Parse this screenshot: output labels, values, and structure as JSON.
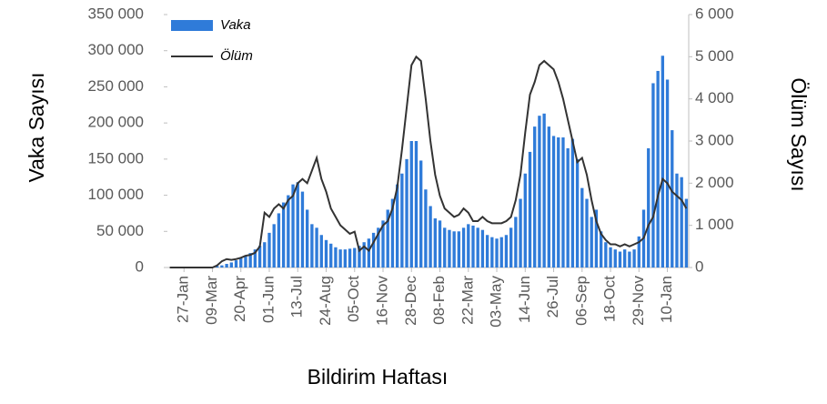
{
  "chart_data": {
    "type": "bar-line",
    "x_label": "Bildirim Haftası",
    "y_label": "Vaka Sayısı",
    "y2_label": "Ölüm Sayısı",
    "categories": [
      null,
      null,
      null,
      "27-Jan",
      null,
      null,
      null,
      null,
      null,
      "09-Mar",
      null,
      null,
      null,
      null,
      null,
      "20-Apr",
      null,
      null,
      null,
      null,
      null,
      "01-Jun",
      null,
      null,
      null,
      null,
      null,
      "13-Jul",
      null,
      null,
      null,
      null,
      null,
      "24-Aug",
      null,
      null,
      null,
      null,
      null,
      "05-Oct",
      null,
      null,
      null,
      null,
      null,
      "16-Nov",
      null,
      null,
      null,
      null,
      null,
      "28-Dec",
      null,
      null,
      null,
      null,
      null,
      "08-Feb",
      null,
      null,
      null,
      null,
      null,
      "22-Mar",
      null,
      null,
      null,
      null,
      null,
      "03-May",
      null,
      null,
      null,
      null,
      null,
      "14-Jun",
      null,
      null,
      null,
      null,
      null,
      "26-Jul",
      null,
      null,
      null,
      null,
      null,
      "06-Sep",
      null,
      null,
      null,
      null,
      null,
      "18-Oct",
      null,
      null,
      null,
      null,
      null,
      "29-Nov",
      null,
      null,
      null,
      null,
      null,
      "10-Jan",
      null,
      null,
      null,
      null
    ],
    "series": [
      {
        "name": "Vaka",
        "type": "bar",
        "color": "#2f7bd9",
        "values": [
          0,
          0,
          0,
          0,
          0,
          0,
          0,
          0,
          0,
          500,
          2000,
          3000,
          5000,
          7000,
          10000,
          13000,
          17000,
          20000,
          25000,
          30000,
          35000,
          48000,
          60000,
          75000,
          90000,
          100000,
          115000,
          118000,
          105000,
          80000,
          60000,
          55000,
          45000,
          38000,
          33000,
          28000,
          25000,
          25000,
          26000,
          27000,
          30000,
          35000,
          40000,
          48000,
          55000,
          65000,
          80000,
          95000,
          115000,
          130000,
          150000,
          175000,
          175000,
          148000,
          108000,
          85000,
          68000,
          65000,
          55000,
          52000,
          50000,
          50000,
          55000,
          60000,
          58000,
          55000,
          52000,
          45000,
          42000,
          40000,
          42000,
          45000,
          55000,
          70000,
          95000,
          130000,
          160000,
          195000,
          210000,
          213000,
          195000,
          182000,
          180000,
          180000,
          165000,
          178000,
          150000,
          110000,
          95000,
          70000,
          80000,
          50000,
          35000,
          28000,
          25000,
          22000,
          25000,
          22000,
          25000,
          43000,
          80000,
          165000,
          255000,
          272000,
          293000,
          260000,
          190000,
          130000,
          125000,
          95000
        ]
      },
      {
        "name": "Ölüm",
        "type": "line",
        "axis": "y2",
        "color": "#333333",
        "values": [
          0,
          0,
          0,
          0,
          0,
          0,
          0,
          0,
          0,
          0,
          50,
          150,
          200,
          180,
          200,
          230,
          280,
          300,
          350,
          500,
          1300,
          1200,
          1400,
          1500,
          1400,
          1600,
          1700,
          2000,
          2100,
          2000,
          2300,
          2600,
          2100,
          1800,
          1400,
          1200,
          1000,
          900,
          800,
          850,
          400,
          500,
          400,
          600,
          800,
          1000,
          1100,
          1400,
          1900,
          2800,
          3800,
          4800,
          5000,
          4900,
          4000,
          3000,
          2200,
          1700,
          1400,
          1300,
          1200,
          1250,
          1400,
          1300,
          1100,
          1100,
          1200,
          1100,
          1050,
          1050,
          1050,
          1100,
          1200,
          1600,
          2200,
          3200,
          4100,
          4400,
          4800,
          4900,
          4800,
          4700,
          4400,
          4000,
          3500,
          3000,
          2500,
          2600,
          2200,
          1600,
          1100,
          800,
          650,
          550,
          550,
          500,
          550,
          500,
          550,
          600,
          700,
          1000,
          1200,
          1700,
          2100,
          2000,
          1800,
          1700,
          1600,
          1400
        ]
      }
    ],
    "ylim": [
      0,
      350000
    ],
    "yticks": [
      0,
      {
        "value": 50000,
        "label": "50 000"
      },
      {
        "value": 100000,
        "label": "100 000"
      },
      {
        "value": 150000,
        "label": "150 000"
      },
      {
        "value": 200000,
        "label": "200 000"
      },
      {
        "value": 250000,
        "label": "250 000"
      },
      {
        "value": 300000,
        "label": "300 000"
      },
      {
        "value": 350000,
        "label": "350 000"
      }
    ],
    "y2lim": [
      0,
      6000
    ],
    "y2ticks": [
      0,
      {
        "value": 1000,
        "label": "1 000"
      },
      {
        "value": 2000,
        "label": "2 000"
      },
      {
        "value": 3000,
        "label": "3 000"
      },
      {
        "value": 4000,
        "label": "4 000"
      },
      {
        "value": 5000,
        "label": "5 000"
      },
      {
        "value": 6000,
        "label": "6 000"
      }
    ],
    "legend": "upper-left",
    "grid": false
  }
}
